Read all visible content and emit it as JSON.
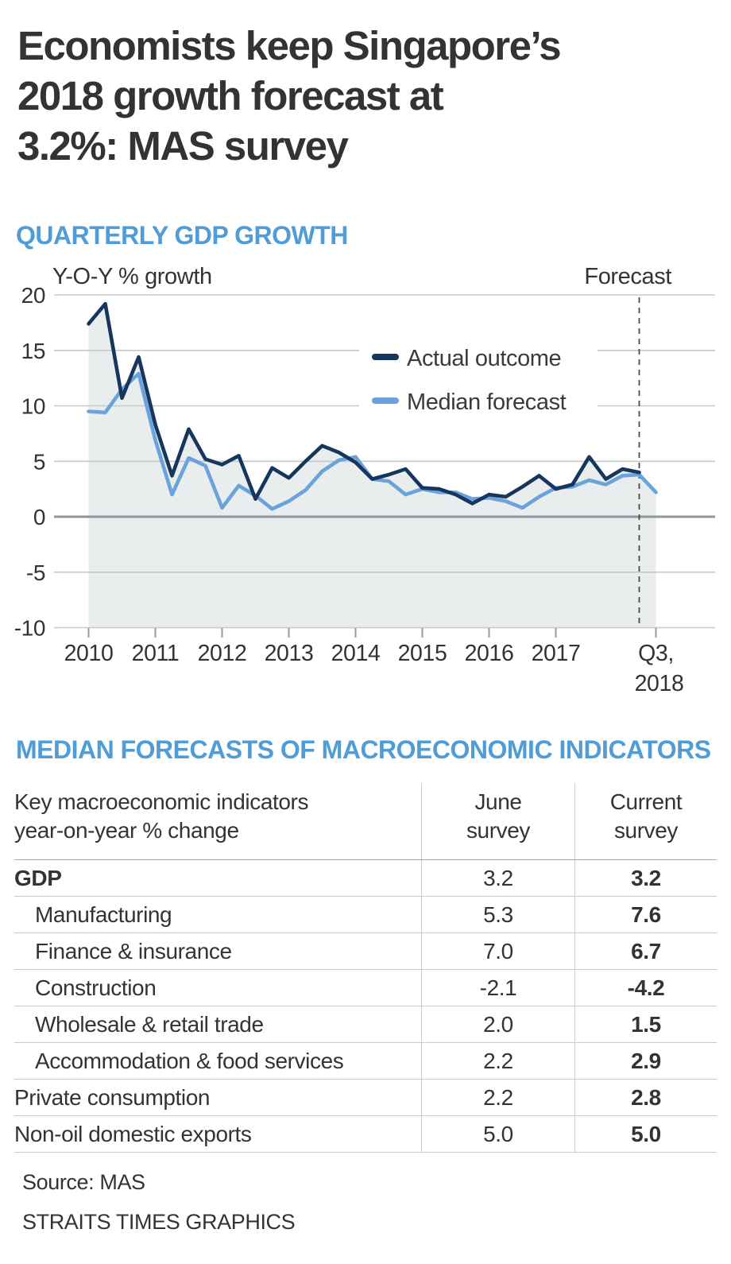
{
  "page": {
    "headline_lines": [
      "Economists keep Singapore’s",
      "2018 growth forecast at",
      "3.2%: MAS survey"
    ],
    "source": "Source: MAS",
    "credit": "STRAITS TIMES GRAPHICS"
  },
  "chart_section": {
    "title": "QUARTERLY GDP GROWTH"
  },
  "chart_data": {
    "type": "line",
    "title": "QUARTERLY GDP GROWTH",
    "y_axis_label": "Y-O-Y % growth",
    "forecast_label": "Forecast",
    "ylim": [
      -10,
      20
    ],
    "y_ticks": [
      20,
      15,
      10,
      5,
      0,
      -5,
      -10
    ],
    "x_year_labels": [
      "2010",
      "2011",
      "2012",
      "2013",
      "2014",
      "2015",
      "2016",
      "2017"
    ],
    "x_last_label_lines": [
      "Q3,",
      "2018"
    ],
    "x_unit": "quarter",
    "x_start": "2010 Q1",
    "x_end": "2018 Q3",
    "grid": true,
    "legend_position": "inside-top-right",
    "area_color": "#e9edee",
    "grid_color": "#c6c9cb",
    "zero_line_color": "#8f9598",
    "dashed_divider_color": "#4a4a4a",
    "forecast_divider_quarter": "2018 Q2",
    "series": [
      {
        "name": "Actual outcome",
        "color": "#17365d",
        "values": [
          17.4,
          19.2,
          10.7,
          14.4,
          8.3,
          3.7,
          7.9,
          5.2,
          4.7,
          5.5,
          1.6,
          4.4,
          3.5,
          5.0,
          6.4,
          5.8,
          4.9,
          3.4,
          3.8,
          4.3,
          2.6,
          2.5,
          2.0,
          1.2,
          2.0,
          1.8,
          2.7,
          3.7,
          2.5,
          2.9,
          5.4,
          3.4,
          4.3,
          4.0
        ]
      },
      {
        "name": "Median forecast",
        "color": "#6aa3dc",
        "values": [
          9.5,
          9.4,
          11.5,
          12.9,
          6.9,
          2.0,
          5.3,
          4.6,
          0.8,
          2.8,
          1.9,
          0.7,
          1.4,
          2.4,
          4.1,
          5.1,
          5.4,
          3.4,
          3.2,
          2.0,
          2.5,
          2.2,
          2.2,
          1.6,
          1.7,
          1.4,
          0.8,
          1.8,
          2.6,
          2.7,
          3.3,
          2.9,
          3.7,
          3.8,
          2.2
        ]
      }
    ]
  },
  "table_section": {
    "title": "MEDIAN FORECASTS OF MACROECONOMIC INDICATORS",
    "header": {
      "col1_line1": "Key macroeconomic indicators",
      "col1_line2": "year-on-year % change",
      "col2_line1": "June",
      "col2_line2": "survey",
      "col3_line1": "Current",
      "col3_line2": "survey"
    },
    "rows": [
      {
        "label": "GDP",
        "indent": false,
        "bold_label": true,
        "june": "3.2",
        "current": "3.2"
      },
      {
        "label": "Manufacturing",
        "indent": true,
        "bold_label": false,
        "june": "5.3",
        "current": "7.6"
      },
      {
        "label": "Finance & insurance",
        "indent": true,
        "bold_label": false,
        "june": "7.0",
        "current": "6.7"
      },
      {
        "label": "Construction",
        "indent": true,
        "bold_label": false,
        "june": "-2.1",
        "current": "-4.2"
      },
      {
        "label": "Wholesale & retail trade",
        "indent": true,
        "bold_label": false,
        "june": "2.0",
        "current": "1.5"
      },
      {
        "label": "Accommodation & food services",
        "indent": true,
        "bold_label": false,
        "june": "2.2",
        "current": "2.9"
      },
      {
        "label": "Private consumption",
        "indent": false,
        "bold_label": false,
        "june": "2.2",
        "current": "2.8"
      },
      {
        "label": "Non-oil domestic exports",
        "indent": false,
        "bold_label": false,
        "june": "5.0",
        "current": "5.0"
      }
    ]
  },
  "colors": {
    "headline_text": "#333333",
    "section_title_blue": "#4f9cd6",
    "actual_line": "#17365d",
    "forecast_line": "#6aa3dc",
    "area_fill": "#e9edee"
  }
}
